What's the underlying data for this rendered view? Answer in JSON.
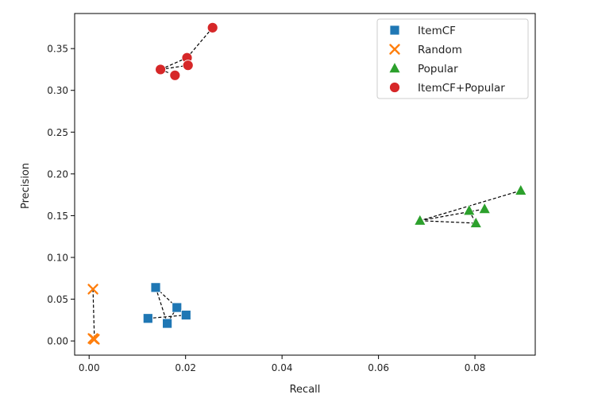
{
  "chart_data": {
    "type": "scatter",
    "title": "",
    "xlabel": "Recall",
    "ylabel": "Precision",
    "xlim": [
      -0.003,
      0.0925
    ],
    "ylim": [
      -0.017,
      0.392
    ],
    "xticks": [
      0.0,
      0.02,
      0.04,
      0.06,
      0.08
    ],
    "xtick_labels": [
      "0.00",
      "0.02",
      "0.04",
      "0.06",
      "0.08"
    ],
    "yticks": [
      0.0,
      0.05,
      0.1,
      0.15,
      0.2,
      0.25,
      0.3,
      0.35
    ],
    "ytick_labels": [
      "0.00",
      "0.05",
      "0.10",
      "0.15",
      "0.20",
      "0.25",
      "0.30",
      "0.35"
    ],
    "grid": false,
    "legend_position": "top-right",
    "connect_style": "dashed-black",
    "series": [
      {
        "name": "ItemCF",
        "marker": "square",
        "color": "#1f77b4",
        "points": [
          [
            0.0138,
            0.064
          ],
          [
            0.0162,
            0.021
          ],
          [
            0.0122,
            0.027
          ],
          [
            0.0182,
            0.04
          ],
          [
            0.0201,
            0.031
          ]
        ],
        "links": [
          [
            0,
            1
          ],
          [
            0,
            3
          ],
          [
            1,
            3
          ],
          [
            2,
            4
          ]
        ]
      },
      {
        "name": "Random",
        "marker": "x",
        "color": "#ff7f0e",
        "points": [
          [
            0.0008,
            0.062
          ],
          [
            0.0008,
            0.003
          ],
          [
            0.0011,
            0.002
          ]
        ],
        "links": [
          [
            0,
            2
          ]
        ]
      },
      {
        "name": "Popular",
        "marker": "triangle",
        "color": "#2ca02c",
        "points": [
          [
            0.0895,
            0.18
          ],
          [
            0.0686,
            0.144
          ],
          [
            0.0788,
            0.156
          ],
          [
            0.082,
            0.158
          ],
          [
            0.0802,
            0.141
          ]
        ],
        "links": [
          [
            0,
            1
          ],
          [
            1,
            4
          ],
          [
            2,
            4
          ],
          [
            1,
            3
          ]
        ]
      },
      {
        "name": "ItemCF+Popular",
        "marker": "circle",
        "color": "#d62728",
        "points": [
          [
            0.0256,
            0.375
          ],
          [
            0.0203,
            0.339
          ],
          [
            0.0148,
            0.325
          ],
          [
            0.0178,
            0.318
          ],
          [
            0.0205,
            0.33
          ]
        ],
        "links": [
          [
            0,
            1
          ],
          [
            1,
            2
          ],
          [
            2,
            3
          ],
          [
            2,
            4
          ]
        ]
      }
    ]
  }
}
